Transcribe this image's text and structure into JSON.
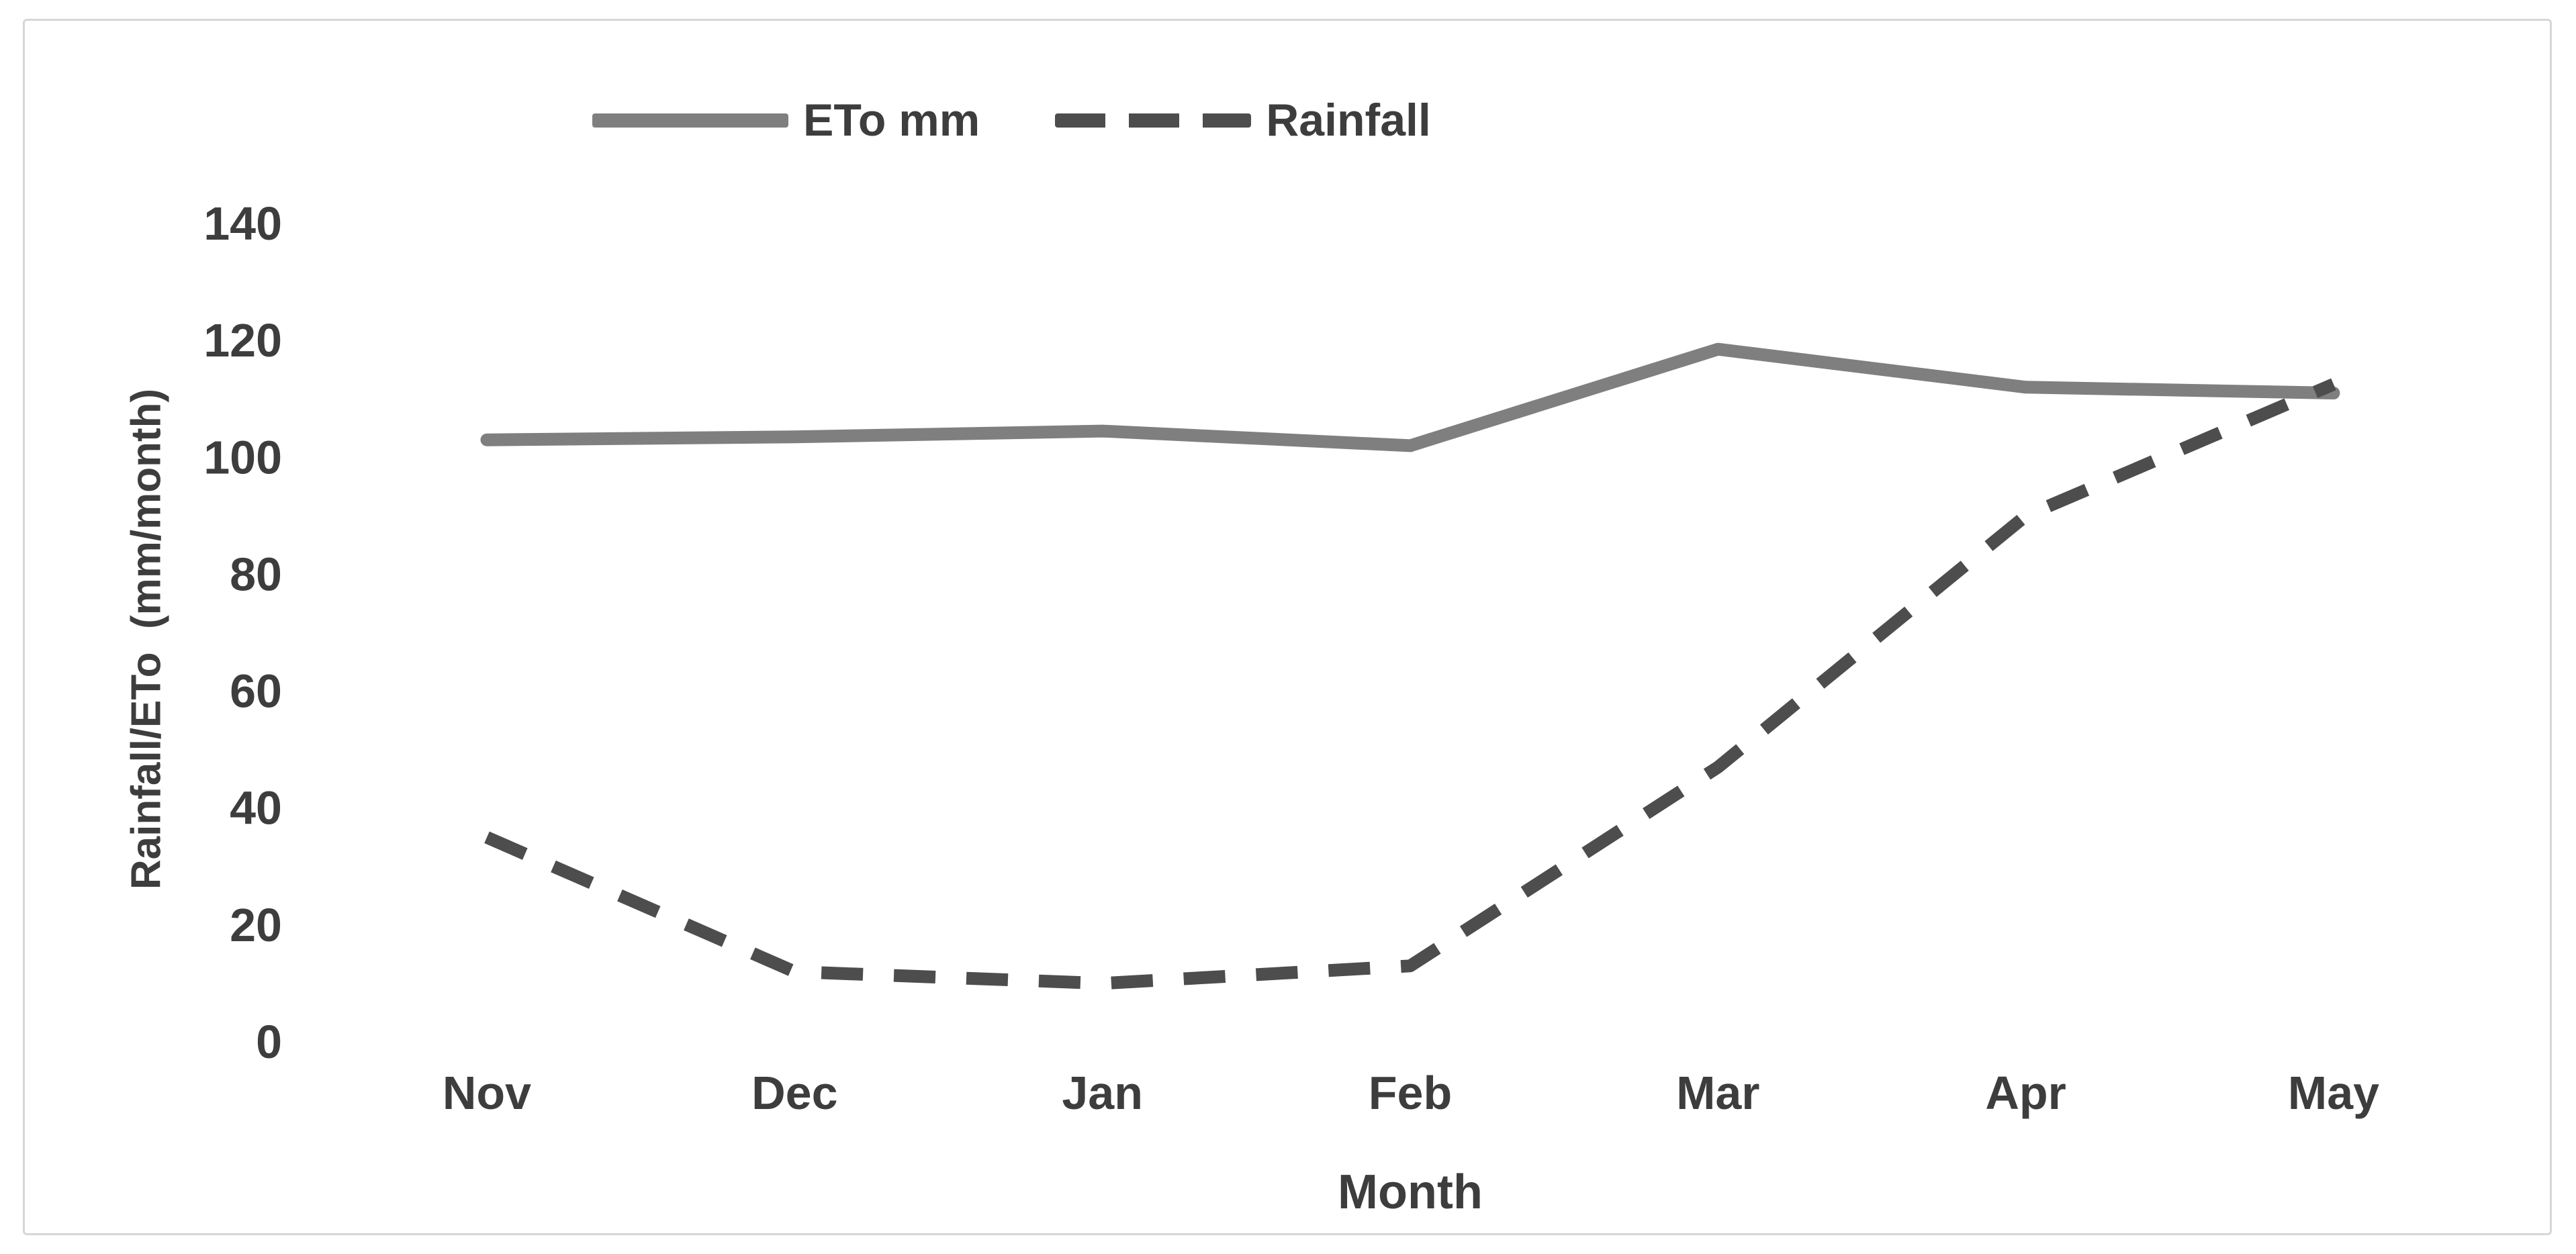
{
  "chart_data": {
    "type": "line",
    "categories": [
      "Nov",
      "Dec",
      "Jan",
      "Feb",
      "Mar",
      "Apr",
      "May"
    ],
    "series": [
      {
        "name": "ETo mm",
        "style": "solid",
        "color": "#7f7f7f",
        "values": [
          103,
          103.5,
          104.5,
          102,
          118.5,
          112,
          111
        ]
      },
      {
        "name": "Rainfall",
        "style": "dashed",
        "color": "#4d4d4d",
        "values": [
          35,
          12,
          10,
          13,
          47,
          90,
          112.5
        ]
      }
    ],
    "title": "",
    "xlabel": "Month",
    "ylabel": "Rainfall/ETo  (mm/month)",
    "ylim": [
      0,
      140
    ],
    "yticks": [
      0,
      20,
      40,
      60,
      80,
      100,
      120,
      140
    ],
    "grid": "off",
    "legend_position": "top-center",
    "text_color": "#3d3d3d",
    "frame_border_color": "#d6d6d6"
  },
  "legend": {
    "items": [
      {
        "label": "ETo mm"
      },
      {
        "label": "Rainfall"
      }
    ]
  },
  "axes": {
    "x_title": "Month",
    "y_title": "Rainfall/ETo  (mm/month)"
  }
}
